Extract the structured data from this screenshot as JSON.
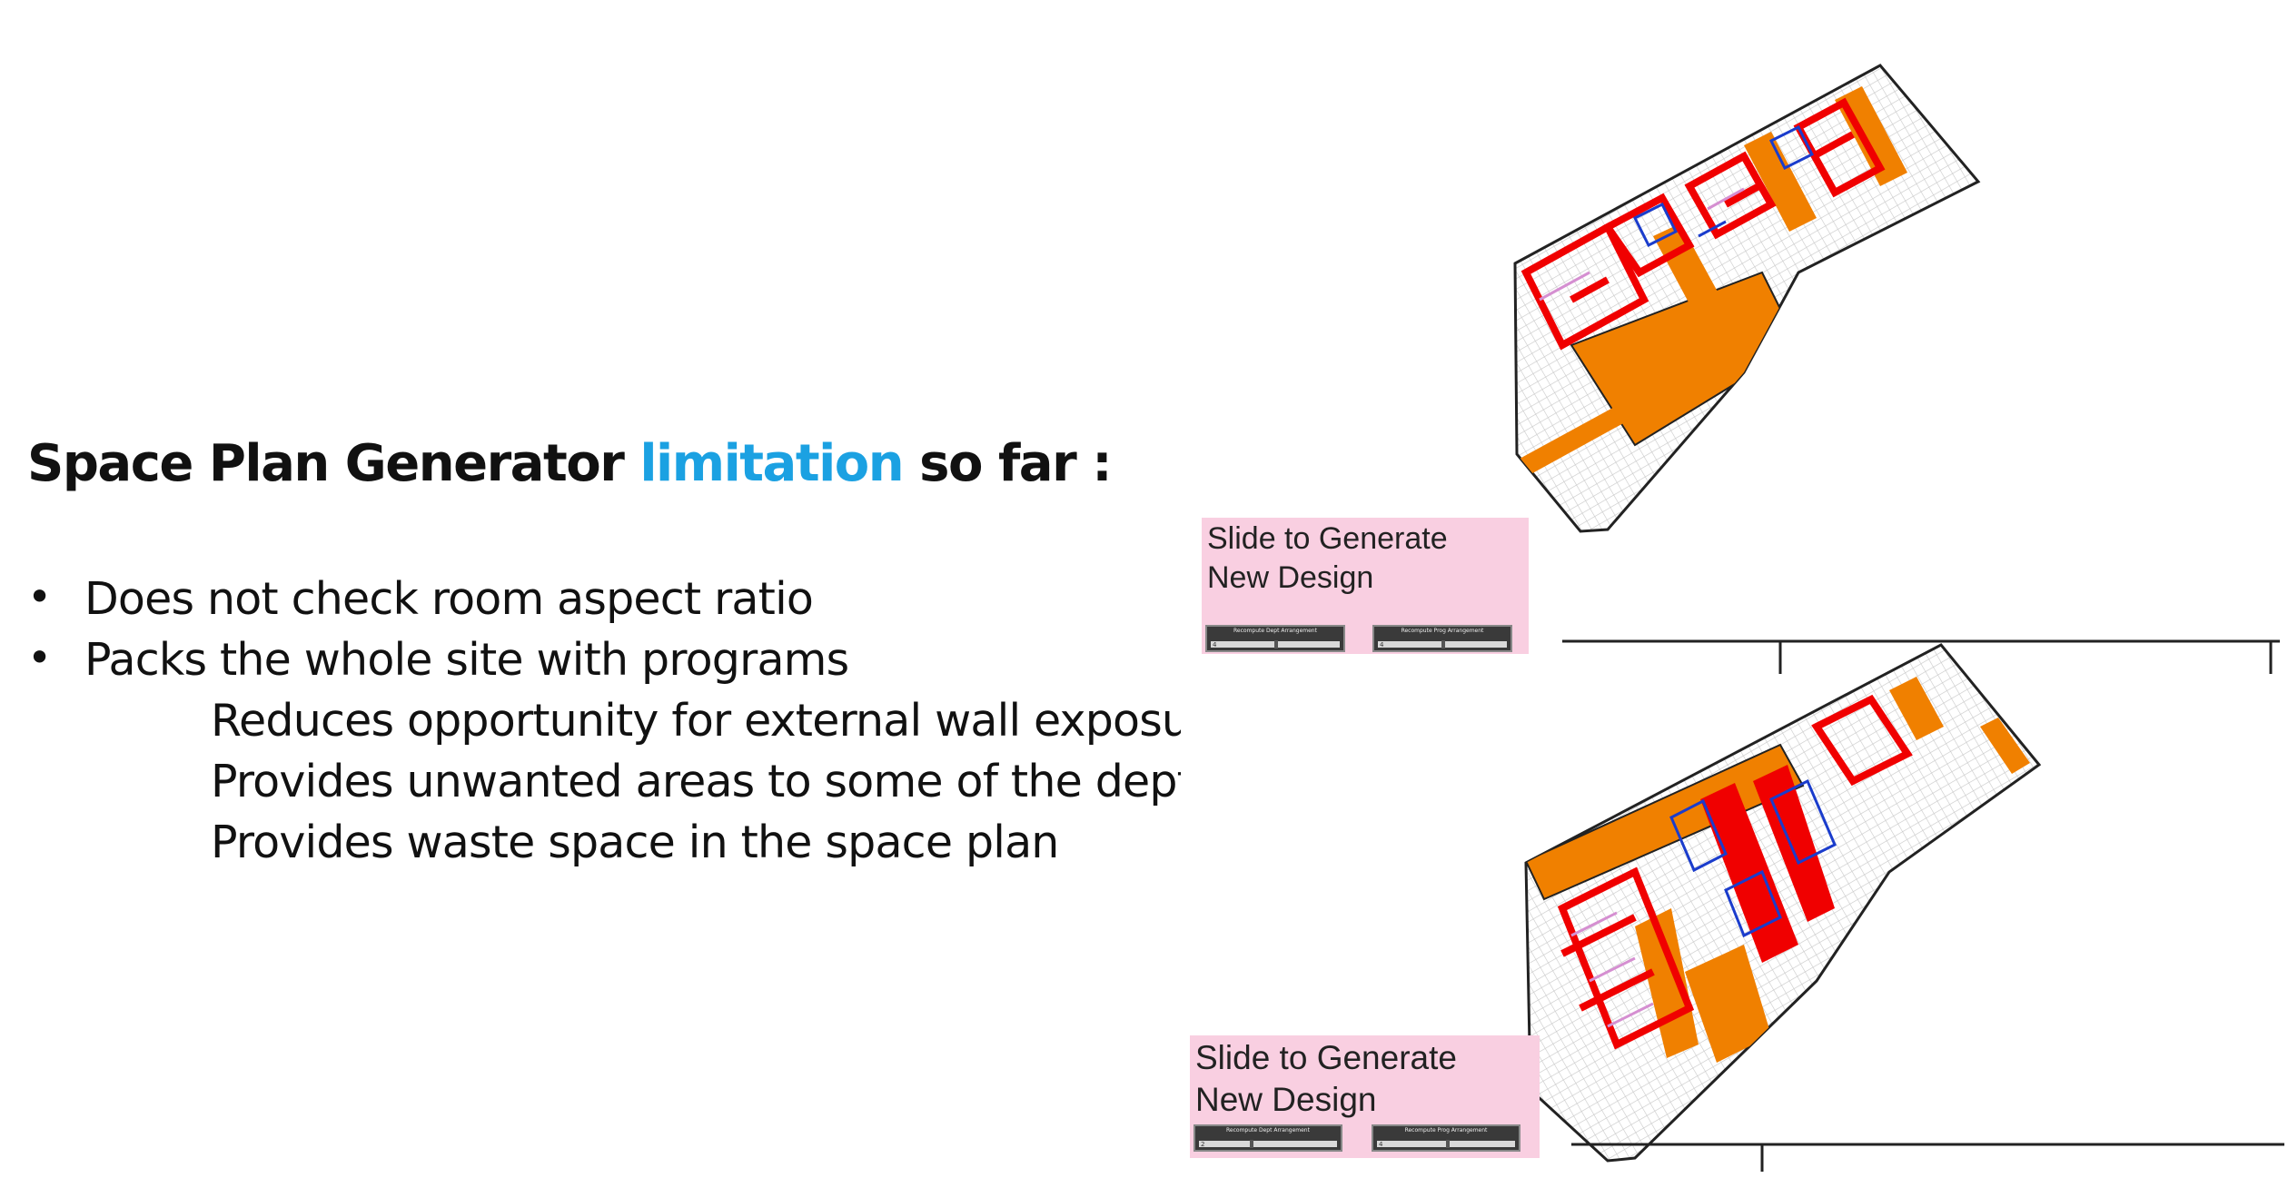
{
  "title": {
    "part1": "Space Plan Generator ",
    "highlight": "limitation",
    "part2": " so far :",
    "highlight_color": "#1ba1e2"
  },
  "bullets": [
    {
      "text": "Does not check room aspect ratio",
      "marker": "•"
    },
    {
      "text": "Packs the whole site with programs",
      "marker": "•"
    }
  ],
  "sub_items": [
    "Reduces opportunity for external wall exposure",
    "Provides unwanted areas to some of the dept. -",
    "Provides waste space in the space plan"
  ],
  "designs": [
    {
      "caption_line1": "Slide to Generate",
      "caption_line2": "New Design",
      "slider_left": {
        "label": "Recompute Dept Arrangement",
        "value": "4"
      },
      "slider_right": {
        "label": "Recompute Prog Arrangement",
        "value": "4"
      }
    },
    {
      "caption_line1": "Slide to Generate",
      "caption_line2": "New Design",
      "slider_left": {
        "label": "Recompute Dept Arrangement",
        "value": "2"
      },
      "slider_right": {
        "label": "Recompute Prog Arrangement",
        "value": "4"
      }
    }
  ],
  "colors": {
    "department": "#f08000",
    "program_outline": "#f00000",
    "circulation": "#1a3ccc",
    "sub_program": "#d58fd1",
    "grid": "#c8c8c8",
    "slider_panel": "#f9cfe1"
  }
}
